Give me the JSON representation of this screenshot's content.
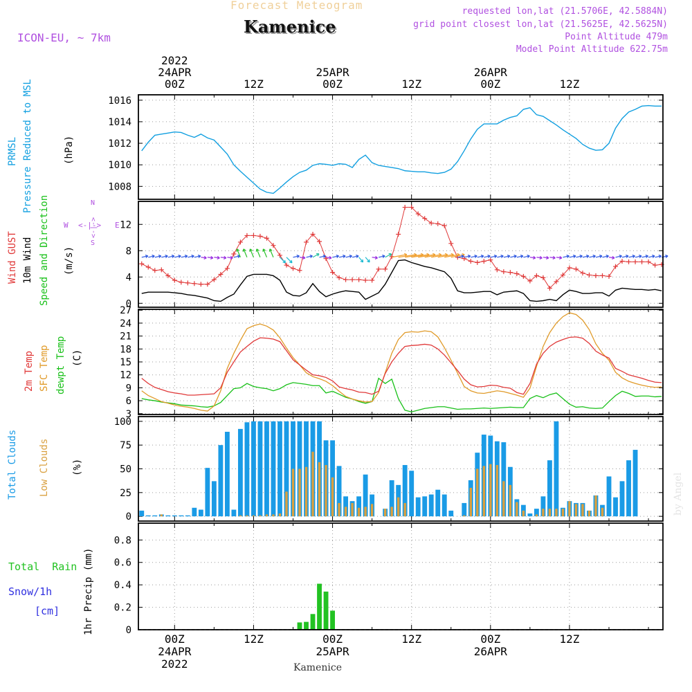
{
  "header": {
    "top_title": "Forecast Meteogram",
    "station": "Kamenice",
    "model": "ICON-EU, ~ 7km",
    "requested": "requested lon,lat (21.5706E, 42.5884N)",
    "grid": "grid point closest lon,lat (21.5625E, 42.5625N)",
    "point_alt": "Point Altitude 479m",
    "model_alt": "Model Point Altitude 622.75m",
    "watermark": "by Angel",
    "footer_station": "Kamenice"
  },
  "time_axis": {
    "top_labels": [
      {
        "hour": 0,
        "lines": [
          "2022",
          "24APR",
          "00Z"
        ]
      },
      {
        "hour": 12,
        "lines": [
          "12Z"
        ]
      },
      {
        "hour": 24,
        "lines": [
          "25APR",
          "00Z"
        ]
      },
      {
        "hour": 36,
        "lines": [
          "12Z"
        ]
      },
      {
        "hour": 48,
        "lines": [
          "26APR",
          "00Z"
        ]
      },
      {
        "hour": 60,
        "lines": [
          "12Z"
        ]
      }
    ],
    "bottom_labels": [
      {
        "hour": 0,
        "lines": [
          "00Z",
          "24APR",
          "2022"
        ]
      },
      {
        "hour": 12,
        "lines": [
          "12Z"
        ]
      },
      {
        "hour": 24,
        "lines": [
          "00Z",
          "25APR"
        ]
      },
      {
        "hour": 36,
        "lines": [
          "12Z"
        ]
      },
      {
        "hour": 48,
        "lines": [
          "00Z",
          "26APR"
        ]
      },
      {
        "hour": 60,
        "lines": [
          "12Z"
        ]
      }
    ]
  },
  "side_labels": {
    "pressure": {
      "short": "PRMSL",
      "long": "Pressure Reduced to MSL",
      "unit": "(hPa)"
    },
    "wind": {
      "gust": "Wind GUST",
      "wind": "10m Wind",
      "speed": "Speed and Direction",
      "unit": "(m/s)",
      "compass": [
        "N",
        "S",
        "W",
        "E",
        "<-|->",
        "<-|->"
      ]
    },
    "temp": {
      "t2m": "2m Temp",
      "sfc": "SFC Temp",
      "dew": "dewpt Temp",
      "unit": "(C)"
    },
    "clouds": {
      "total": "Total Clouds",
      "low": "Low Clouds",
      "unit": "(%)"
    },
    "precip": {
      "rain": "Total  Rain",
      "snow": "Snow/1h",
      "cm": "[cm]",
      "axis": "1hr Precip (mm)"
    }
  },
  "colors": {
    "pressure": "#119fe0",
    "gust": "#e03838",
    "wind": "#000000",
    "t2m": "#e03838",
    "sfc": "#e09a28",
    "dew": "#18c018",
    "total_cloud": "#1a9be6",
    "low_cloud": "#d9a040",
    "rain": "#22c222",
    "header_title": "#f0d09a",
    "info": "#b050e0",
    "snow": "#3030e0"
  },
  "chart_data": [
    {
      "type": "line",
      "name": "pressure",
      "ylim": [
        1006.8,
        1016.5
      ],
      "yticks": [
        1008,
        1010,
        1012,
        1014,
        1016
      ],
      "x": [
        -5,
        -4,
        -3,
        -2,
        -1,
        0,
        1,
        2,
        3,
        4,
        5,
        6,
        7,
        8,
        9,
        10,
        11,
        12,
        13,
        14,
        15,
        16,
        17,
        18,
        19,
        20,
        21,
        22,
        23,
        24,
        25,
        26,
        27,
        28,
        29,
        30,
        31,
        32,
        33,
        34,
        35,
        36,
        37,
        38,
        39,
        40,
        41,
        42,
        43,
        44,
        45,
        46,
        47,
        48,
        49,
        50,
        51,
        52,
        53,
        54,
        55,
        56,
        57,
        58,
        59,
        60,
        61,
        62,
        63,
        64,
        65,
        66,
        67,
        68,
        69,
        70,
        71,
        72,
        73,
        74
      ],
      "values": [
        1011.3,
        1012.1,
        1012.75,
        1012.85,
        1012.95,
        1013.05,
        1013.0,
        1012.75,
        1012.55,
        1012.85,
        1012.5,
        1012.3,
        1011.65,
        1011.0,
        1010.0,
        1009.4,
        1008.85,
        1008.3,
        1007.75,
        1007.45,
        1007.35,
        1007.85,
        1008.4,
        1008.9,
        1009.3,
        1009.5,
        1009.95,
        1010.1,
        1010.05,
        1009.95,
        1010.1,
        1010.05,
        1009.75,
        1010.5,
        1010.9,
        1010.2,
        1009.95,
        1009.85,
        1009.75,
        1009.65,
        1009.45,
        1009.4,
        1009.35,
        1009.35,
        1009.25,
        1009.2,
        1009.3,
        1009.6,
        1010.3,
        1011.3,
        1012.4,
        1013.3,
        1013.8,
        1013.8,
        1013.8,
        1014.15,
        1014.4,
        1014.55,
        1015.15,
        1015.3,
        1014.65,
        1014.5,
        1014.1,
        1013.7,
        1013.25,
        1012.85,
        1012.45,
        1011.9,
        1011.55,
        1011.35,
        1011.4,
        1012.0,
        1013.4,
        1014.3,
        1014.9,
        1015.15,
        1015.45,
        1015.5,
        1015.45,
        1015.45
      ]
    },
    {
      "type": "line",
      "name": "wind",
      "ylim": [
        -0.6,
        15.5
      ],
      "yticks": [
        0,
        4,
        8,
        12
      ],
      "x": [
        -5,
        -4,
        -3,
        -2,
        -1,
        0,
        1,
        2,
        3,
        4,
        5,
        6,
        7,
        8,
        9,
        10,
        11,
        12,
        13,
        14,
        15,
        16,
        17,
        18,
        19,
        20,
        21,
        22,
        23,
        24,
        25,
        26,
        27,
        28,
        29,
        30,
        31,
        32,
        33,
        34,
        35,
        36,
        37,
        38,
        39,
        40,
        41,
        42,
        43,
        44,
        45,
        46,
        47,
        48,
        49,
        50,
        51,
        52,
        53,
        54,
        55,
        56,
        57,
        58,
        59,
        60,
        61,
        62,
        63,
        64,
        65,
        66,
        67,
        68,
        69,
        70,
        71,
        72,
        73,
        74
      ],
      "gust": [
        6.0,
        5.5,
        5.0,
        5.1,
        4.2,
        3.5,
        3.2,
        3.1,
        3.0,
        2.9,
        2.9,
        3.6,
        4.4,
        5.3,
        7.5,
        9.3,
        10.3,
        10.3,
        10.2,
        9.9,
        8.8,
        7.3,
        5.8,
        5.3,
        5.0,
        9.3,
        10.5,
        9.4,
        6.8,
        4.7,
        3.9,
        3.6,
        3.6,
        3.6,
        3.5,
        3.5,
        5.2,
        5.2,
        7.1,
        10.5,
        14.6,
        14.6,
        13.6,
        12.9,
        12.2,
        12.1,
        11.8,
        9.1,
        7.0,
        6.8,
        6.4,
        6.2,
        6.4,
        6.6,
        5.1,
        4.8,
        4.7,
        4.5,
        4.1,
        3.4,
        4.2,
        3.9,
        2.3,
        3.3,
        4.3,
        5.4,
        5.2,
        4.6,
        4.3,
        4.2,
        4.2,
        4.1,
        5.6,
        6.4,
        6.3,
        6.3,
        6.3,
        6.3,
        5.8,
        5.9
      ],
      "speed": [
        1.5,
        1.7,
        1.7,
        1.7,
        1.7,
        1.6,
        1.5,
        1.3,
        1.2,
        1.0,
        0.8,
        0.4,
        0.3,
        0.9,
        1.4,
        2.8,
        4.1,
        4.4,
        4.4,
        4.4,
        4.2,
        3.5,
        1.7,
        1.2,
        1.1,
        1.6,
        3.0,
        1.8,
        1.0,
        1.4,
        1.7,
        1.9,
        1.8,
        1.7,
        0.6,
        1.1,
        1.6,
        2.9,
        4.7,
        6.5,
        6.6,
        6.2,
        5.9,
        5.6,
        5.4,
        5.1,
        4.8,
        3.8,
        1.9,
        1.6,
        1.6,
        1.7,
        1.8,
        1.8,
        1.3,
        1.7,
        1.8,
        1.9,
        1.5,
        0.4,
        0.3,
        0.4,
        0.6,
        0.4,
        1.3,
        2.0,
        1.8,
        1.5,
        1.5,
        1.6,
        1.6,
        1.1,
        2.0,
        2.3,
        2.2,
        2.1,
        2.1,
        2.0,
        2.1,
        1.9
      ]
    },
    {
      "type": "line",
      "name": "temperature",
      "ylim": [
        2.8,
        27.2
      ],
      "yticks": [
        3,
        6,
        9,
        12,
        15,
        18,
        21,
        24,
        27
      ],
      "x": [
        -5,
        -4,
        -3,
        -2,
        -1,
        0,
        1,
        2,
        3,
        4,
        5,
        6,
        7,
        8,
        9,
        10,
        11,
        12,
        13,
        14,
        15,
        16,
        17,
        18,
        19,
        20,
        21,
        22,
        23,
        24,
        25,
        26,
        27,
        28,
        29,
        30,
        31,
        32,
        33,
        34,
        35,
        36,
        37,
        38,
        39,
        40,
        41,
        42,
        43,
        44,
        45,
        46,
        47,
        48,
        49,
        50,
        51,
        52,
        53,
        54,
        55,
        56,
        57,
        58,
        59,
        60,
        61,
        62,
        63,
        64,
        65,
        66,
        67,
        68,
        69,
        70,
        71,
        72,
        73,
        74
      ],
      "t2m": [
        11.2,
        10.0,
        9.1,
        8.6,
        8.1,
        7.8,
        7.6,
        7.3,
        7.3,
        7.4,
        7.5,
        7.6,
        9.0,
        12.6,
        15.0,
        17.3,
        18.6,
        19.8,
        20.6,
        20.5,
        20.3,
        19.7,
        17.6,
        15.5,
        14.3,
        13.1,
        12.0,
        11.8,
        11.4,
        10.6,
        9.2,
        8.8,
        8.5,
        8.0,
        7.9,
        7.5,
        8.2,
        12.3,
        15.0,
        17.0,
        18.6,
        18.8,
        18.9,
        19.1,
        18.9,
        18.0,
        16.6,
        14.8,
        13.0,
        11.0,
        9.7,
        9.2,
        9.3,
        9.6,
        9.5,
        9.1,
        8.9,
        7.9,
        7.5,
        10.0,
        14.5,
        17.0,
        18.6,
        19.6,
        20.2,
        20.7,
        20.8,
        20.5,
        19.3,
        17.5,
        16.6,
        15.9,
        13.5,
        12.8,
        12.0,
        11.6,
        11.2,
        10.7,
        10.3,
        10.2
      ],
      "sfc": [
        8.3,
        7.2,
        6.5,
        5.8,
        5.4,
        5.0,
        4.7,
        4.5,
        4.2,
        3.8,
        3.6,
        4.8,
        8.3,
        13.5,
        17.0,
        20.0,
        22.7,
        23.4,
        23.8,
        23.3,
        22.4,
        20.6,
        18.2,
        16.0,
        14.3,
        12.5,
        11.6,
        11.1,
        10.5,
        9.5,
        8.2,
        7.0,
        6.4,
        6.0,
        5.7,
        5.8,
        7.9,
        12.5,
        17.0,
        20.2,
        21.8,
        22.0,
        21.9,
        22.2,
        22.0,
        20.8,
        18.3,
        15.4,
        12.4,
        9.3,
        8.3,
        7.8,
        7.7,
        8.0,
        8.3,
        8.1,
        7.7,
        7.3,
        6.8,
        8.9,
        14.0,
        18.6,
        21.8,
        24.0,
        25.5,
        26.4,
        26.0,
        24.7,
        22.5,
        19.2,
        17.0,
        15.4,
        12.6,
        11.3,
        10.5,
        10.0,
        9.6,
        9.3,
        9.1,
        9.2
      ],
      "dew": [
        6.5,
        6.2,
        6.0,
        5.7,
        5.5,
        5.3,
        5.0,
        4.9,
        4.8,
        4.6,
        4.5,
        4.8,
        5.6,
        7.2,
        8.8,
        9.0,
        10.0,
        9.3,
        9.0,
        8.8,
        8.3,
        8.8,
        9.7,
        10.2,
        10.0,
        9.8,
        9.5,
        9.5,
        7.8,
        8.2,
        7.5,
        6.8,
        6.4,
        5.8,
        5.4,
        5.8,
        11.2,
        10.0,
        11.0,
        6.5,
        3.8,
        3.4,
        3.8,
        4.2,
        4.4,
        4.6,
        4.6,
        4.3,
        4.0,
        4.1,
        4.1,
        4.2,
        4.3,
        4.2,
        4.3,
        4.4,
        4.5,
        4.4,
        4.4,
        6.5,
        7.2,
        6.7,
        7.4,
        7.8,
        6.5,
        5.2,
        4.5,
        4.6,
        4.3,
        4.2,
        4.3,
        5.8,
        7.2,
        8.2,
        7.7,
        7.0,
        7.1,
        7.1,
        6.9,
        7.0
      ]
    },
    {
      "type": "bar",
      "name": "clouds",
      "ylim": [
        -5,
        105
      ],
      "yticks": [
        0,
        25,
        50,
        75,
        100
      ],
      "x": [
        -5,
        -4,
        -3,
        -2,
        -1,
        0,
        1,
        2,
        3,
        4,
        5,
        6,
        7,
        8,
        9,
        10,
        11,
        12,
        13,
        14,
        15,
        16,
        17,
        18,
        19,
        20,
        21,
        22,
        23,
        24,
        25,
        26,
        27,
        28,
        29,
        30,
        31,
        32,
        33,
        34,
        35,
        36,
        37,
        38,
        39,
        40,
        41,
        42,
        43,
        44,
        45,
        46,
        47,
        48,
        49,
        50,
        51,
        52,
        53,
        54,
        55,
        56,
        57,
        58,
        59,
        60,
        61,
        62,
        63,
        64,
        65,
        66,
        67,
        68,
        69,
        70,
        71,
        72,
        73,
        74
      ],
      "total": [
        6,
        1,
        1,
        2,
        1,
        1,
        1,
        1,
        9,
        7,
        51,
        37,
        75,
        89,
        7,
        92,
        99,
        100,
        100,
        100,
        100,
        100,
        100,
        100,
        100,
        100,
        100,
        100,
        80,
        80,
        53,
        21,
        16,
        21,
        44,
        23,
        0,
        8,
        38,
        33,
        54,
        48,
        20,
        21,
        23,
        28,
        23,
        6,
        0,
        14,
        38,
        67,
        86,
        85,
        79,
        78,
        52,
        18,
        12,
        3,
        8,
        21,
        59,
        100,
        9,
        16,
        14,
        14,
        6,
        22,
        12,
        42,
        20,
        37,
        59,
        70,
        0,
        0,
        0,
        0
      ],
      "low": [
        0,
        0,
        0,
        2,
        0,
        0,
        0,
        0,
        0,
        0,
        0,
        0,
        0,
        0,
        0,
        1,
        1,
        1,
        1,
        2,
        2,
        3,
        26,
        50,
        50,
        52,
        68,
        57,
        54,
        41,
        14,
        10,
        14,
        9,
        10,
        13,
        0,
        8,
        10,
        20,
        14,
        0,
        0,
        0,
        0,
        0,
        0,
        0,
        0,
        1,
        30,
        50,
        53,
        55,
        54,
        37,
        33,
        15,
        6,
        0,
        2,
        8,
        8,
        8,
        8,
        16,
        13,
        13,
        6,
        22,
        9,
        0,
        0,
        0,
        0,
        0,
        0,
        0,
        0,
        0
      ]
    },
    {
      "type": "bar",
      "name": "precip",
      "ylim": [
        0,
        0.95
      ],
      "yticks": [
        0,
        0.2,
        0.4,
        0.6,
        0.8
      ],
      "x": [
        19,
        20,
        21,
        22,
        23,
        24
      ],
      "values": [
        0.065,
        0.07,
        0.14,
        0.41,
        0.34,
        0.17
      ]
    }
  ]
}
